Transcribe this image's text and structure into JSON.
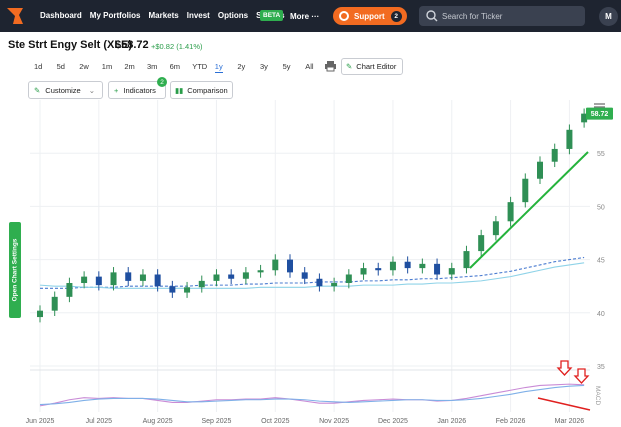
{
  "nav": {
    "items": [
      "Dashboard",
      "My Portfolios",
      "Markets",
      "Invest",
      "Options",
      "Signals"
    ],
    "beta": "BETA",
    "more": "More",
    "support": "Support",
    "support_badge": "2",
    "search_placeholder": "Search for Ticker",
    "avatar": "M"
  },
  "header": {
    "name": "Ste Strt Engy Selt (XLE)",
    "price": "$58.72",
    "change": "+$0.82 (1.41%)"
  },
  "ranges": {
    "buttons": [
      "1d",
      "5d",
      "2w",
      "1m",
      "2m",
      "3m",
      "6m",
      "YTD",
      "1y",
      "2y",
      "3y",
      "5y",
      "All"
    ],
    "selected": "1y"
  },
  "toolbar": {
    "chart_editor": "Chart Editor",
    "customize": "Customize",
    "indicators": "Indicators",
    "indicators_badge": "2",
    "comparison": "Comparison",
    "settings_tab": "Open Chart Settings"
  },
  "chart_data": {
    "type": "candlestick",
    "x": [
      0,
      0.25,
      0.5,
      0.75,
      1,
      1.25,
      1.5,
      1.75,
      2,
      2.25,
      2.5,
      2.75,
      3,
      3.25,
      3.5,
      3.75,
      4,
      4.25,
      4.5,
      4.75,
      5,
      5.25,
      5.5,
      5.75,
      6,
      6.25,
      6.5,
      6.75,
      7,
      7.25,
      7.5,
      7.75,
      8,
      8.25,
      8.5,
      8.75,
      9,
      9.25
    ],
    "open": [
      39.6,
      40.2,
      41.5,
      42.8,
      43.4,
      42.6,
      43.8,
      43.0,
      43.6,
      42.5,
      41.9,
      42.4,
      43.0,
      43.6,
      43.2,
      43.8,
      44.0,
      45.0,
      43.8,
      43.2,
      42.5,
      42.8,
      43.6,
      44.2,
      44.0,
      44.8,
      44.2,
      44.6,
      43.6,
      44.2,
      45.8,
      47.3,
      48.6,
      50.4,
      52.6,
      54.2,
      55.4,
      57.9
    ],
    "high": [
      40.7,
      42.0,
      43.3,
      43.9,
      43.9,
      44.3,
      44.3,
      44.1,
      44.1,
      43.0,
      42.9,
      43.5,
      44.1,
      44.1,
      44.3,
      44.5,
      45.5,
      45.5,
      44.3,
      43.7,
      43.3,
      44.1,
      44.7,
      44.7,
      45.3,
      45.3,
      45.1,
      45.1,
      44.7,
      46.3,
      47.8,
      49.1,
      50.9,
      53.1,
      54.7,
      55.9,
      57.7,
      59.2
    ],
    "low": [
      39.1,
      39.7,
      41.0,
      42.3,
      42.1,
      42.1,
      42.5,
      42.5,
      42.0,
      41.4,
      41.4,
      41.9,
      42.5,
      42.7,
      42.7,
      43.3,
      43.5,
      43.3,
      42.7,
      42.0,
      42.0,
      42.3,
      43.1,
      43.5,
      43.5,
      43.7,
      43.7,
      43.1,
      43.1,
      43.7,
      45.3,
      46.8,
      48.1,
      49.9,
      52.1,
      53.7,
      54.9,
      57.4
    ],
    "close": [
      40.2,
      41.5,
      42.8,
      43.4,
      42.6,
      43.8,
      43.0,
      43.6,
      42.5,
      41.9,
      42.4,
      43.0,
      43.6,
      43.2,
      43.8,
      44.0,
      45.0,
      43.8,
      43.2,
      42.5,
      42.8,
      43.6,
      44.2,
      44.0,
      44.8,
      44.2,
      44.6,
      43.6,
      44.2,
      45.8,
      47.3,
      48.6,
      50.4,
      52.6,
      54.2,
      55.4,
      57.2,
      58.72
    ],
    "up_color": "#2f8f55",
    "down_color": "#1f4fa0",
    "series": [
      {
        "color": "#4a7bd0",
        "dashed": true,
        "values": [
          42.3,
          42.3,
          42.3,
          42.4,
          42.4,
          42.4,
          42.5,
          42.5,
          42.5,
          42.5,
          42.5,
          42.6,
          42.6,
          42.6,
          42.7,
          42.7,
          42.8,
          42.8,
          42.8,
          42.9,
          42.9,
          42.9,
          43.0,
          43.0,
          43.1,
          43.1,
          43.2,
          43.2,
          43.3,
          43.4,
          43.5,
          43.7,
          43.9,
          44.2,
          44.5,
          44.8,
          45.0,
          45.2
        ]
      },
      {
        "color": "#8fd3e8",
        "dashed": false,
        "values": [
          42.6,
          42.5,
          42.5,
          42.4,
          42.4,
          42.3,
          42.3,
          42.3,
          42.3,
          42.3,
          42.3,
          42.3,
          42.3,
          42.3,
          42.3,
          42.4,
          42.4,
          42.4,
          42.4,
          42.5,
          42.5,
          42.5,
          42.6,
          42.6,
          42.6,
          42.7,
          42.7,
          42.8,
          42.8,
          42.9,
          43.0,
          43.2,
          43.4,
          43.7,
          44.0,
          44.3,
          44.5,
          44.7
        ]
      }
    ],
    "last_price": 58.72,
    "xlim": [
      -0.17,
      9.35
    ],
    "xticks": [
      {
        "value": 0,
        "label": "Jun 2025"
      },
      {
        "value": 1,
        "label": "Jul 2025"
      },
      {
        "value": 2,
        "label": "Aug 2025"
      },
      {
        "value": 3,
        "label": "Sep 2025"
      },
      {
        "value": 4,
        "label": "Oct 2025"
      },
      {
        "value": 5,
        "label": "Nov 2025"
      },
      {
        "value": 6,
        "label": "Dec 2025"
      },
      {
        "value": 7,
        "label": "Jan 2026"
      },
      {
        "value": 8,
        "label": "Feb 2026"
      },
      {
        "value": 9,
        "label": "Mar 2026"
      }
    ],
    "ylim": [
      35,
      60
    ],
    "yticks": [
      35,
      40,
      45,
      50,
      55
    ],
    "grid": true,
    "macd_label": "MACD",
    "macd_ylim": [
      -1.5,
      3.5
    ],
    "macd": {
      "color": "#c98bd6",
      "values": [
        -0.6,
        -0.2,
        0.3,
        0.6,
        0.5,
        0.6,
        0.5,
        0.5,
        0.2,
        -0.1,
        -0.1,
        0.1,
        0.3,
        0.3,
        0.4,
        0.4,
        0.6,
        0.4,
        0.1,
        -0.2,
        -0.2,
        0.0,
        0.2,
        0.3,
        0.4,
        0.3,
        0.3,
        0.1,
        0.2,
        0.5,
        0.9,
        1.3,
        1.7,
        2.1,
        2.4,
        2.5,
        2.6,
        2.5
      ]
    },
    "signal": {
      "color": "#7fb0e8",
      "values": [
        -0.4,
        -0.3,
        -0.1,
        0.2,
        0.4,
        0.5,
        0.5,
        0.5,
        0.4,
        0.2,
        0.0,
        0.0,
        0.1,
        0.2,
        0.3,
        0.3,
        0.4,
        0.4,
        0.3,
        0.1,
        0.0,
        -0.1,
        0.0,
        0.1,
        0.2,
        0.3,
        0.3,
        0.2,
        0.2,
        0.3,
        0.5,
        0.8,
        1.1,
        1.5,
        1.8,
        2.1,
        2.3,
        2.4
      ]
    }
  }
}
